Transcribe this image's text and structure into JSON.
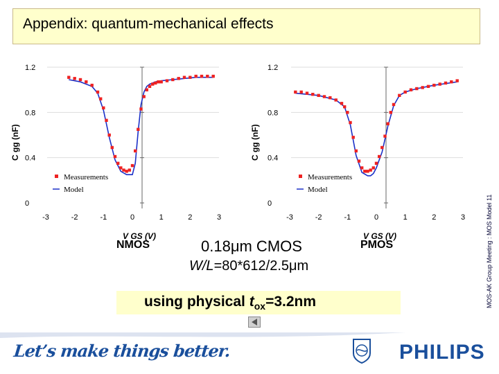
{
  "slide": {
    "title": "Appendix: quantum-mechanical effects",
    "side_text": "MOS-AK Group Meeting : MOS Model 11",
    "center_line1": "0.18μm CMOS",
    "center_line2_prefix": "W/L",
    "center_line2_suffix": "=80*612/2.5μm",
    "tox_prefix": "using physical ",
    "tox_t": "t",
    "tox_sub": "ox",
    "tox_value": "=3.2nm",
    "nmos_label": "NMOS",
    "pmos_label": "PMOS",
    "slogan": "Let’s make things better.",
    "brand": "PHILIPS"
  },
  "colors": {
    "title_bg": "#ffffcc",
    "measurements": "#ee2222",
    "model": "#1a2fc8",
    "brand": "#1a4f9c"
  },
  "chart_data": [
    {
      "type": "line",
      "name": "NMOS",
      "ylabel": "C gg (nF)",
      "xlabel": "V GS (V)",
      "xlim": [
        -3,
        3
      ],
      "ylim": [
        0,
        1.2
      ],
      "xticks": [
        "-3",
        "-2",
        "-1",
        "0",
        "1",
        "2",
        "3"
      ],
      "yticks": [
        "0",
        "0.4",
        "0.8",
        "1.2"
      ],
      "legend": [
        "Measurements",
        "Model"
      ],
      "legend_position": "bottom-left",
      "series": [
        {
          "name": "Measurements",
          "style": "markers",
          "x": [
            -2.2,
            -2.0,
            -1.8,
            -1.6,
            -1.4,
            -1.2,
            -1.1,
            -1.0,
            -0.9,
            -0.8,
            -0.7,
            -0.6,
            -0.5,
            -0.4,
            -0.3,
            -0.2,
            -0.1,
            0.0,
            0.1,
            0.2,
            0.3,
            0.4,
            0.5,
            0.6,
            0.7,
            0.8,
            0.9,
            1.0,
            1.2,
            1.4,
            1.6,
            1.8,
            2.0,
            2.2,
            2.4,
            2.6,
            2.8
          ],
          "y": [
            1.11,
            1.1,
            1.09,
            1.07,
            1.04,
            0.98,
            0.92,
            0.84,
            0.73,
            0.6,
            0.49,
            0.41,
            0.35,
            0.31,
            0.29,
            0.28,
            0.29,
            0.33,
            0.46,
            0.65,
            0.83,
            0.94,
            1.0,
            1.03,
            1.05,
            1.06,
            1.07,
            1.07,
            1.08,
            1.09,
            1.1,
            1.11,
            1.11,
            1.12,
            1.12,
            1.12,
            1.12
          ]
        },
        {
          "name": "Model",
          "style": "line",
          "x": [
            -2.2,
            -1.8,
            -1.4,
            -1.2,
            -1.0,
            -0.8,
            -0.6,
            -0.4,
            -0.2,
            0.0,
            0.1,
            0.2,
            0.3,
            0.4,
            0.5,
            0.6,
            0.8,
            1.0,
            1.4,
            1.8,
            2.2,
            2.8
          ],
          "y": [
            1.09,
            1.07,
            1.03,
            0.97,
            0.82,
            0.58,
            0.38,
            0.28,
            0.25,
            0.25,
            0.35,
            0.63,
            0.87,
            0.98,
            1.03,
            1.05,
            1.07,
            1.08,
            1.09,
            1.1,
            1.11,
            1.11
          ]
        }
      ]
    },
    {
      "type": "line",
      "name": "PMOS",
      "ylabel": "C gg (nF)",
      "xlabel": "V GS (V)",
      "xlim": [
        -3,
        3
      ],
      "ylim": [
        0,
        1.2
      ],
      "xticks": [
        "-3",
        "-2",
        "-1",
        "0",
        "1",
        "2",
        "3"
      ],
      "yticks": [
        "0",
        "0.4",
        "0.8",
        "1.2"
      ],
      "legend": [
        "Measurements",
        "Model"
      ],
      "legend_position": "bottom-left",
      "series": [
        {
          "name": "Measurements",
          "style": "markers",
          "x": [
            -2.8,
            -2.6,
            -2.4,
            -2.2,
            -2.0,
            -1.8,
            -1.6,
            -1.4,
            -1.2,
            -1.1,
            -1.0,
            -0.9,
            -0.8,
            -0.7,
            -0.6,
            -0.5,
            -0.4,
            -0.3,
            -0.2,
            -0.1,
            0.0,
            0.1,
            0.2,
            0.3,
            0.4,
            0.5,
            0.6,
            0.8,
            1.0,
            1.2,
            1.4,
            1.6,
            1.8,
            2.0,
            2.2,
            2.4,
            2.6,
            2.8
          ],
          "y": [
            0.98,
            0.98,
            0.97,
            0.96,
            0.95,
            0.94,
            0.93,
            0.91,
            0.88,
            0.85,
            0.8,
            0.71,
            0.58,
            0.46,
            0.37,
            0.31,
            0.28,
            0.28,
            0.29,
            0.31,
            0.35,
            0.41,
            0.49,
            0.59,
            0.7,
            0.8,
            0.87,
            0.95,
            0.98,
            1.0,
            1.01,
            1.02,
            1.03,
            1.04,
            1.05,
            1.06,
            1.07,
            1.08
          ]
        },
        {
          "name": "Model",
          "style": "line",
          "x": [
            -2.8,
            -2.0,
            -1.4,
            -1.1,
            -0.9,
            -0.7,
            -0.5,
            -0.3,
            -0.2,
            -0.1,
            0.0,
            0.2,
            0.4,
            0.6,
            0.8,
            1.0,
            1.4,
            2.0,
            2.8
          ],
          "y": [
            0.97,
            0.95,
            0.91,
            0.85,
            0.69,
            0.42,
            0.27,
            0.24,
            0.24,
            0.26,
            0.31,
            0.45,
            0.68,
            0.86,
            0.95,
            0.98,
            1.01,
            1.04,
            1.07
          ]
        }
      ]
    }
  ]
}
